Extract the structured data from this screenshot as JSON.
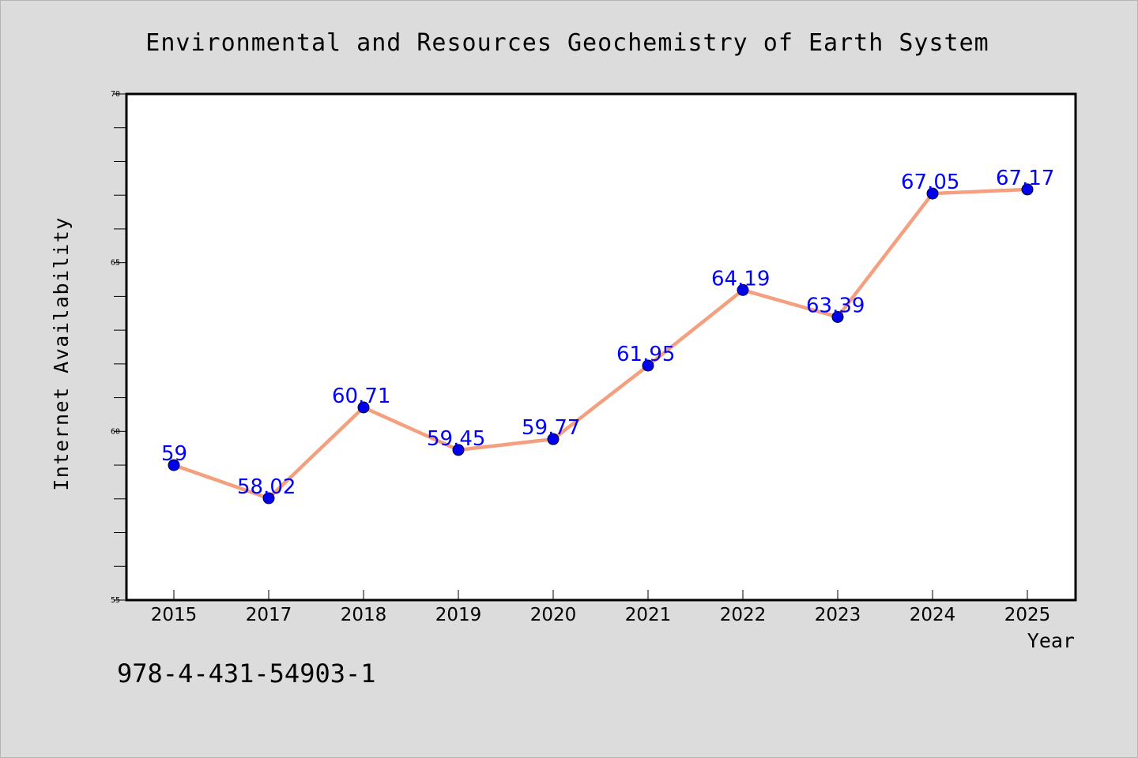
{
  "chart_data": {
    "type": "line",
    "title": "Environmental and Resources Geochemistry of Earth System",
    "xlabel": "Year",
    "ylabel": "Internet Availability",
    "categories": [
      "2015",
      "2017",
      "2018",
      "2019",
      "2020",
      "2021",
      "2022",
      "2023",
      "2024",
      "2025"
    ],
    "series": [
      {
        "values": [
          59,
          58.02,
          60.71,
          59.45,
          59.77,
          61.95,
          64.19,
          63.39,
          67.05,
          67.17
        ],
        "labels": [
          "59",
          "58.02",
          "60.71",
          "59.45",
          "59.77",
          "61.95",
          "64.19",
          "63.39",
          "67.05",
          "67.17"
        ]
      }
    ],
    "ylim": [
      55,
      70
    ],
    "y_major_ticks": [
      55,
      60,
      65,
      70
    ],
    "y_minor_step": 1,
    "grid": false,
    "legend": "none",
    "colors": {
      "line": "#f4a07f",
      "marker": "#0000ee",
      "data_label": "#0000ff",
      "figure_background": "#dcdcdc",
      "plot_background": "#ffffff"
    },
    "footer_text": "978-4-431-54903-1"
  }
}
